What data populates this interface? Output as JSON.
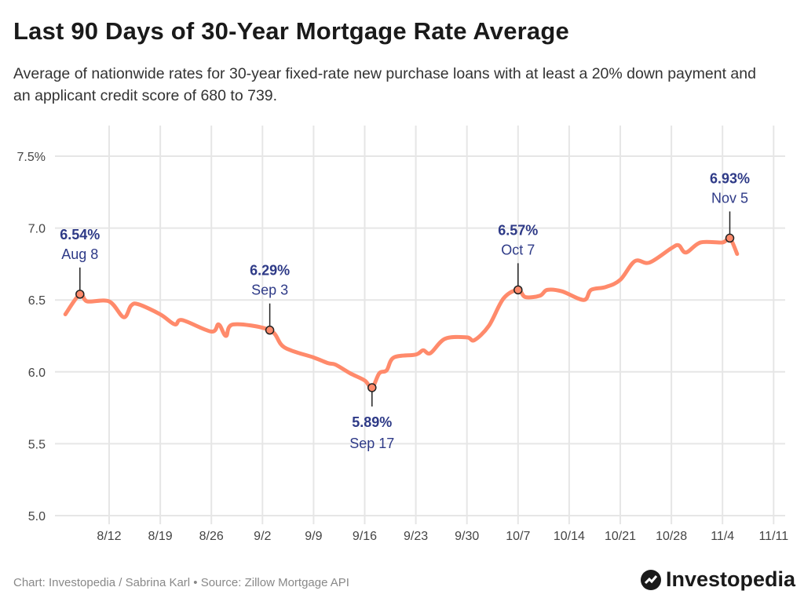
{
  "title": "Last 90 Days of 30-Year Mortgage Rate Average",
  "subtitle": "Average of nationwide rates for 30-year fixed-rate new purchase loans with at least a 20% down payment and an applicant credit score of 680 to 739.",
  "footer": "Chart: Investopedia / Sabrina Karl • Source: Zillow Mortgage API",
  "logo_text": "Investopedia",
  "chart_data": {
    "type": "line",
    "title": "",
    "xlabel": "",
    "ylabel": "",
    "ylim": [
      5.0,
      7.5
    ],
    "yticks": [
      "5.0",
      "5.5",
      "6.0",
      "6.5",
      "7.0",
      "7.5%"
    ],
    "ytick_values": [
      5.0,
      5.5,
      6.0,
      6.5,
      7.0,
      7.5
    ],
    "xticks": [
      "8/12",
      "8/19",
      "8/26",
      "9/2",
      "9/9",
      "9/16",
      "9/23",
      "9/30",
      "10/7",
      "10/14",
      "10/21",
      "10/28",
      "11/4",
      "11/11"
    ],
    "grid": true,
    "line_color": "#ff8a6b",
    "label_color": "#2e3a87",
    "x": [
      "8/6",
      "8/8",
      "8/9",
      "8/12",
      "8/14",
      "8/15",
      "8/16",
      "8/19",
      "8/21",
      "8/22",
      "8/26",
      "8/27",
      "8/28",
      "8/29",
      "9/3",
      "9/5",
      "9/9",
      "9/11",
      "9/12",
      "9/14",
      "9/16",
      "9/17",
      "9/18",
      "9/19",
      "9/20",
      "9/23",
      "9/24",
      "9/25",
      "9/27",
      "9/30",
      "10/1",
      "10/3",
      "10/5",
      "10/7",
      "10/8",
      "10/10",
      "10/11",
      "10/13",
      "10/16",
      "10/17",
      "10/19",
      "10/21",
      "10/23",
      "10/25",
      "10/28",
      "10/29",
      "10/30",
      "11/1",
      "11/4",
      "11/5",
      "11/6"
    ],
    "values": [
      6.4,
      6.54,
      6.49,
      6.49,
      6.38,
      6.46,
      6.47,
      6.4,
      6.33,
      6.36,
      6.28,
      6.33,
      6.25,
      6.33,
      6.29,
      6.17,
      6.1,
      6.06,
      6.05,
      5.99,
      5.94,
      5.89,
      5.99,
      6.01,
      6.1,
      6.12,
      6.15,
      6.13,
      6.23,
      6.24,
      6.22,
      6.32,
      6.51,
      6.57,
      6.52,
      6.53,
      6.57,
      6.56,
      6.5,
      6.57,
      6.59,
      6.64,
      6.77,
      6.76,
      6.86,
      6.88,
      6.83,
      6.9,
      6.9,
      6.93,
      6.82
    ],
    "annotations": [
      {
        "date": "8/8",
        "value": 6.54,
        "value_label": "6.54%",
        "date_label": "Aug 8",
        "side": "above"
      },
      {
        "date": "9/3",
        "value": 6.29,
        "value_label": "6.29%",
        "date_label": "Sep 3",
        "side": "above"
      },
      {
        "date": "9/17",
        "value": 5.89,
        "value_label": "5.89%",
        "date_label": "Sep 17",
        "side": "below"
      },
      {
        "date": "10/7",
        "value": 6.57,
        "value_label": "6.57%",
        "date_label": "Oct 7",
        "side": "above"
      },
      {
        "date": "11/5",
        "value": 6.93,
        "value_label": "6.93%",
        "date_label": "Nov 5",
        "side": "above"
      }
    ]
  }
}
